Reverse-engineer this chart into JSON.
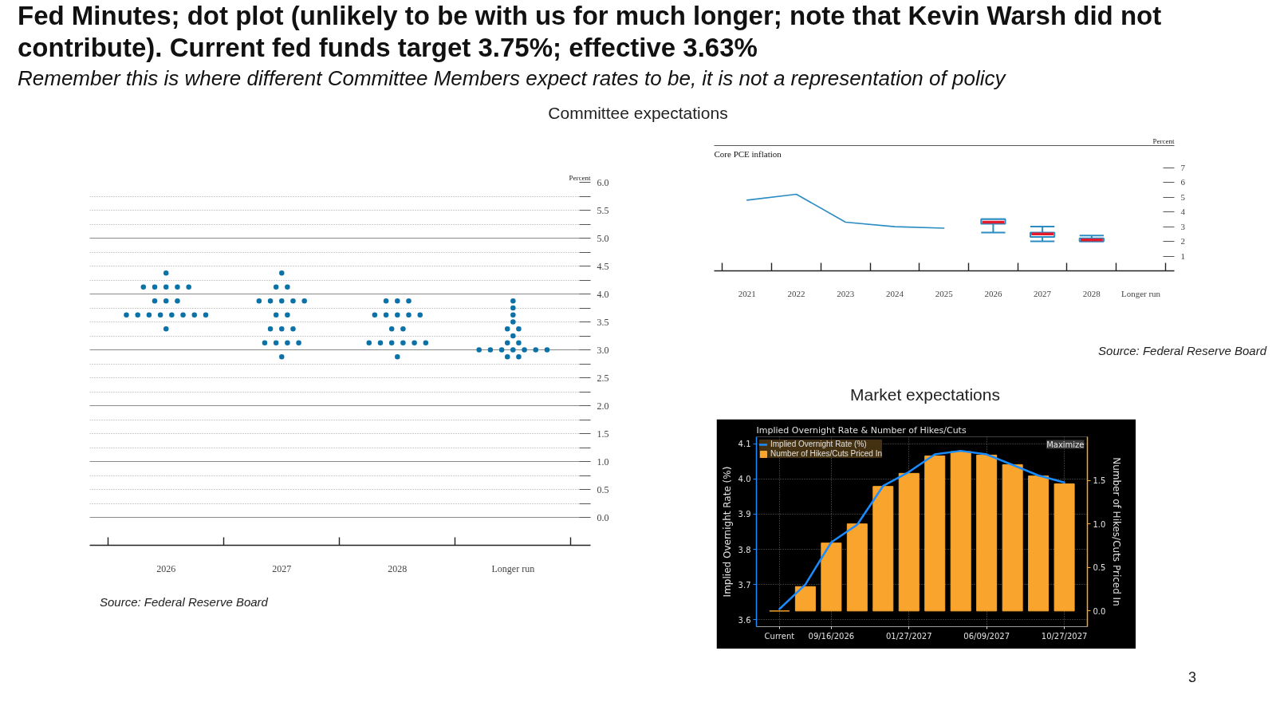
{
  "chart_data": [
    {
      "type": "scatter",
      "title": "Fed Minutes; dot plot (unlikely to be with us for much longer; note that Kevin Warsh did not contribute). Current fed funds target 3.75%; effective 3.63%",
      "subtitle": "Remember this is where different Committee Members expect rates to be, it is not a representation of policy",
      "categories": [
        "2026",
        "2027",
        "2028",
        "Longer run"
      ],
      "ylabel": "Percent",
      "series": [
        {
          "color": "#0b72a8",
          "values": [
            4.375,
            4.375,
            3.875,
            3.875
          ]
        },
        {
          "color": "#0b72a8",
          "values": [
            4.125,
            4.125,
            3.875,
            3.75
          ]
        },
        {
          "color": "#0b72a8",
          "values": [
            4.125,
            4.125,
            3.875,
            3.625
          ]
        },
        {
          "color": "#0b72a8",
          "values": [
            4.125,
            3.875,
            3.625,
            3.5
          ]
        },
        {
          "color": "#0b72a8",
          "values": [
            4.125,
            3.875,
            3.625,
            3.375
          ]
        },
        {
          "color": "#0b72a8",
          "values": [
            4.125,
            3.875,
            3.625,
            3.375
          ]
        },
        {
          "color": "#0b72a8",
          "values": [
            3.875,
            3.875,
            3.625,
            3.25
          ]
        },
        {
          "color": "#0b72a8",
          "values": [
            3.875,
            3.875,
            3.625,
            3.125
          ]
        },
        {
          "color": "#0b72a8",
          "values": [
            3.875,
            3.625,
            3.375,
            3.125
          ]
        },
        {
          "color": "#0b72a8",
          "values": [
            3.625,
            3.625,
            3.375,
            3.0
          ]
        },
        {
          "color": "#0b72a8",
          "values": [
            3.625,
            3.375,
            3.125,
            3.0
          ]
        },
        {
          "color": "#0b72a8",
          "values": [
            3.625,
            3.375,
            3.125,
            3.0
          ]
        },
        {
          "color": "#0b72a8",
          "values": [
            3.625,
            3.375,
            3.125,
            3.0
          ]
        },
        {
          "color": "#0b72a8",
          "values": [
            3.625,
            3.125,
            3.125,
            3.0
          ]
        },
        {
          "color": "#0b72a8",
          "values": [
            3.625,
            3.125,
            3.125,
            3.0
          ]
        },
        {
          "color": "#0b72a8",
          "values": [
            3.625,
            3.125,
            3.125,
            3.0
          ]
        },
        {
          "color": "#0b72a8",
          "values": [
            3.625,
            3.125,
            2.875,
            2.875
          ]
        },
        {
          "color": "#0b72a8",
          "values": [
            3.375,
            2.875,
            null,
            2.875
          ]
        }
      ],
      "ylim": [
        -0.5,
        6.0
      ],
      "yticks": [
        {
          "value": 0,
          "label": "0.0"
        },
        {
          "value": 0.25,
          "label": null
        },
        0.5,
        {
          "value": 0.75,
          "label": null
        },
        {
          "value": 1,
          "label": "1.0"
        },
        {
          "value": 1.25,
          "label": null
        },
        1.5,
        {
          "value": 1.75,
          "label": null
        },
        {
          "value": 2,
          "label": "2.0"
        },
        {
          "value": 2.25,
          "label": null
        },
        2.5,
        {
          "value": 2.75,
          "label": null
        },
        {
          "value": 3,
          "label": "3.0"
        },
        {
          "value": 3.25,
          "label": null
        },
        3.5,
        {
          "value": 3.75,
          "label": null
        },
        {
          "value": 4,
          "label": "4.0"
        },
        {
          "value": 4.25,
          "label": null
        },
        4.5,
        {
          "value": 4.75,
          "label": null
        },
        {
          "value": 5,
          "label": "5.0"
        },
        {
          "value": 5.25,
          "label": null
        },
        5.5,
        {
          "value": 5.75,
          "label": null
        },
        {
          "value": 6,
          "label": "6.0"
        }
      ],
      "grid": "y",
      "marker": "circle",
      "annotations": [
        "Committee expectations",
        "Source: Federal Reserve Board"
      ]
    },
    {
      "type": "line",
      "title": "Core PCE inflation",
      "ylabel": "Percent",
      "categories": [
        "2021",
        "2022",
        "2023",
        "2024",
        "2025",
        "2026",
        "2027",
        "2028",
        "Longer run"
      ],
      "series": [
        {
          "type": "line",
          "color": "#2b8cc4",
          "values": [
            4.8,
            5.2,
            3.3,
            3.0,
            2.9,
            null,
            null,
            null,
            null
          ]
        },
        {
          "type": "box",
          "color": "#2b8cc4",
          "boxes": [
            null,
            null,
            null,
            null,
            null,
            {
              "low": 2.6,
              "q1": 3.2,
              "median": 3.3,
              "q3": 3.5,
              "high": 3.5
            },
            {
              "low": 2.0,
              "q1": 2.3,
              "median": 2.5,
              "q3": 2.6,
              "high": 3.0
            },
            {
              "low": 2.0,
              "q1": 2.0,
              "median": 2.1,
              "q3": 2.2,
              "high": 2.4
            },
            null
          ]
        }
      ],
      "ylim": [
        0,
        8.5
      ],
      "yticks": [
        1,
        2,
        3,
        4,
        5,
        6,
        7
      ],
      "annotations": [
        "Source: Federal Reserve Board"
      ]
    },
    {
      "type": "bar",
      "title": "Market expectations",
      "subtitle": "Implied Overnight Rate & Number of Hikes/Cuts",
      "categories": [
        "Current",
        null,
        "09/16/2026",
        null,
        null,
        "01/27/2027",
        null,
        null,
        "06/09/2027",
        null,
        null,
        "10/27/2027"
      ],
      "ylabel": "Implied Overnight Rate (%)",
      "y2label": "Number of Hikes/Cuts Priced In",
      "series": [
        {
          "name": "Implied Overnight Rate (%)",
          "type": "line",
          "color": "#1a8cff",
          "values": [
            3.63,
            3.7,
            3.82,
            3.87,
            3.98,
            4.02,
            4.07,
            4.08,
            4.07,
            4.04,
            4.01,
            3.99
          ]
        },
        {
          "name": "Number of Hikes/Cuts Priced In",
          "type": "bar",
          "axis": "y2",
          "color": "#f9a42c",
          "values": [
            0,
            0.28,
            0.78,
            1.0,
            1.43,
            1.58,
            1.78,
            1.83,
            1.79,
            1.68,
            1.55,
            1.46
          ]
        }
      ],
      "ylim": [
        3.58,
        4.12
      ],
      "yticks": [
        3.6,
        3.7,
        3.8,
        3.9,
        {
          "value": 4,
          "label": "4.0"
        },
        4.1
      ],
      "y2lim": [
        -0.18,
        2.0
      ],
      "y2ticks": [
        {
          "value": 0,
          "label": "0.0"
        },
        0.5,
        {
          "value": 1,
          "label": "1.0"
        },
        1.5
      ],
      "grid": true,
      "legend": "top left",
      "annotations": [
        "Maximize",
        "3"
      ]
    }
  ]
}
